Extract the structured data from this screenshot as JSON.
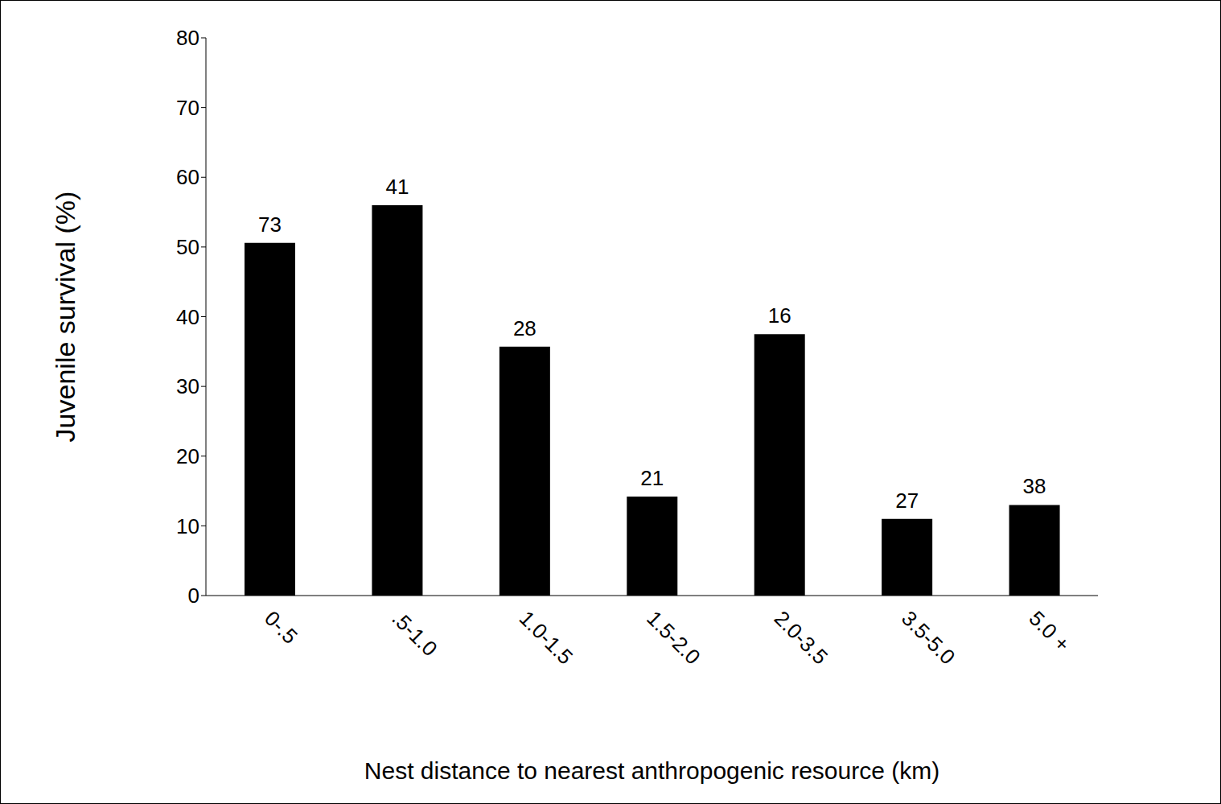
{
  "chart_data": {
    "type": "bar",
    "categories": [
      "0-.5",
      ".5-1.0",
      "1.0-1.5",
      "1.5-2.0",
      "2.0-3.5",
      "3.5-5.0",
      "5.0 +"
    ],
    "values": [
      50.6,
      56,
      35.7,
      14.2,
      37.5,
      11,
      13
    ],
    "sample_sizes": [
      73,
      41,
      28,
      21,
      16,
      27,
      38
    ],
    "color": "#000000",
    "x_label": "Nest distance to nearest anthropogenic resource (km)",
    "y_label": "Juvenile survival (%)",
    "ylim": [
      0,
      80
    ],
    "yticks": [
      0,
      10,
      20,
      30,
      40,
      50,
      60,
      70,
      80
    ],
    "grid": false
  }
}
